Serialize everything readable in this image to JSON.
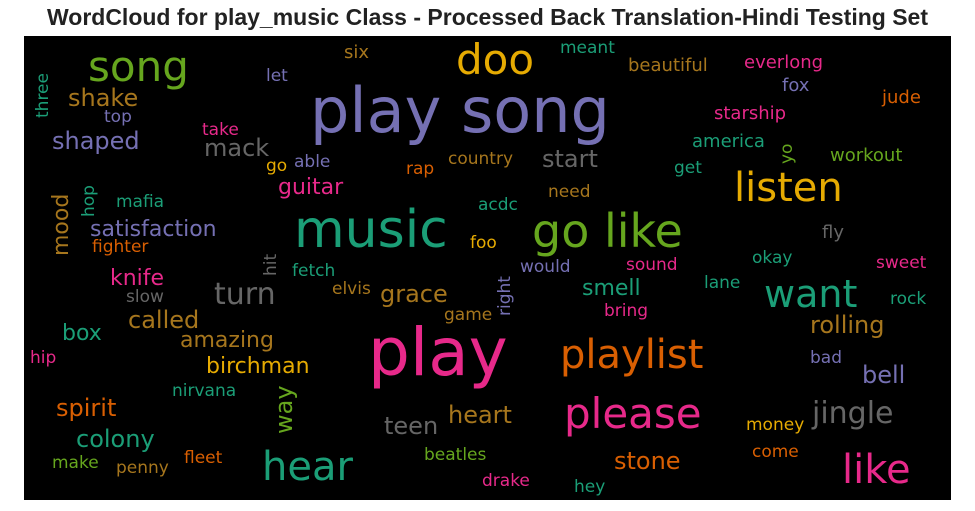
{
  "chart_data": {
    "type": "wordcloud",
    "title": "WordCloud for play_music Class - Processed Back Translation-Hindi Testing Set",
    "background": "#000000",
    "words": [
      {
        "text": "play song",
        "size": 62,
        "color": "#7570b3"
      },
      {
        "text": "play",
        "size": 66,
        "color": "#e7298a"
      },
      {
        "text": "music",
        "size": 52,
        "color": "#1b9e77"
      },
      {
        "text": "go like",
        "size": 46,
        "color": "#66a61e"
      },
      {
        "text": "song",
        "size": 42,
        "color": "#66a61e"
      },
      {
        "text": "doo",
        "size": 42,
        "color": "#e6ab02"
      },
      {
        "text": "listen",
        "size": 40,
        "color": "#e6ab02"
      },
      {
        "text": "want",
        "size": 38,
        "color": "#1b9e77"
      },
      {
        "text": "playlist",
        "size": 40,
        "color": "#d95f02"
      },
      {
        "text": "please",
        "size": 42,
        "color": "#e7298a"
      },
      {
        "text": "hear",
        "size": 40,
        "color": "#1b9e77"
      },
      {
        "text": "like",
        "size": 40,
        "color": "#e7298a"
      },
      {
        "text": "jingle",
        "size": 30,
        "color": "#666666"
      },
      {
        "text": "turn",
        "size": 30,
        "color": "#666666"
      },
      {
        "text": "grace",
        "size": 24,
        "color": "#a6761d"
      },
      {
        "text": "satisfaction",
        "size": 22,
        "color": "#7570b3"
      },
      {
        "text": "guitar",
        "size": 22,
        "color": "#e7298a"
      },
      {
        "text": "shaped",
        "size": 24,
        "color": "#7570b3"
      },
      {
        "text": "shake",
        "size": 24,
        "color": "#a6761d"
      },
      {
        "text": "mack",
        "size": 24,
        "color": "#666666"
      },
      {
        "text": "start",
        "size": 24,
        "color": "#666666"
      },
      {
        "text": "mood",
        "size": 22,
        "color": "#a6761d"
      },
      {
        "text": "knife",
        "size": 22,
        "color": "#e7298a"
      },
      {
        "text": "called",
        "size": 24,
        "color": "#a6761d"
      },
      {
        "text": "box",
        "size": 22,
        "color": "#1b9e77"
      },
      {
        "text": "amazing",
        "size": 22,
        "color": "#a6761d"
      },
      {
        "text": "birchman",
        "size": 22,
        "color": "#e6ab02"
      },
      {
        "text": "spirit",
        "size": 24,
        "color": "#d95f02"
      },
      {
        "text": "colony",
        "size": 24,
        "color": "#1b9e77"
      },
      {
        "text": "way",
        "size": 24,
        "color": "#66a61e"
      },
      {
        "text": "heart",
        "size": 24,
        "color": "#a6761d"
      },
      {
        "text": "teen",
        "size": 24,
        "color": "#666666"
      },
      {
        "text": "stone",
        "size": 24,
        "color": "#d95f02"
      },
      {
        "text": "smell",
        "size": 22,
        "color": "#1b9e77"
      },
      {
        "text": "rolling",
        "size": 24,
        "color": "#a6761d"
      },
      {
        "text": "bell",
        "size": 24,
        "color": "#7570b3"
      },
      {
        "text": "six",
        "size": 18,
        "color": "#a6761d"
      },
      {
        "text": "meant",
        "size": 17,
        "color": "#1b9e77"
      },
      {
        "text": "beautiful",
        "size": 18,
        "color": "#a6761d"
      },
      {
        "text": "everlong",
        "size": 18,
        "color": "#e7298a"
      },
      {
        "text": "fox",
        "size": 18,
        "color": "#7570b3"
      },
      {
        "text": "jude",
        "size": 18,
        "color": "#d95f02"
      },
      {
        "text": "starship",
        "size": 18,
        "color": "#e7298a"
      },
      {
        "text": "america",
        "size": 18,
        "color": "#1b9e77"
      },
      {
        "text": "yo",
        "size": 17,
        "color": "#66a61e"
      },
      {
        "text": "workout",
        "size": 18,
        "color": "#66a61e"
      },
      {
        "text": "three",
        "size": 17,
        "color": "#1b9e77"
      },
      {
        "text": "let",
        "size": 17,
        "color": "#7570b3"
      },
      {
        "text": "top",
        "size": 17,
        "color": "#7570b3"
      },
      {
        "text": "take",
        "size": 17,
        "color": "#e7298a"
      },
      {
        "text": "go",
        "size": 17,
        "color": "#e6ab02"
      },
      {
        "text": "able",
        "size": 17,
        "color": "#7570b3"
      },
      {
        "text": "rap",
        "size": 17,
        "color": "#d95f02"
      },
      {
        "text": "country",
        "size": 17,
        "color": "#a6761d"
      },
      {
        "text": "get",
        "size": 17,
        "color": "#1b9e77"
      },
      {
        "text": "need",
        "size": 17,
        "color": "#a6761d"
      },
      {
        "text": "acdc",
        "size": 17,
        "color": "#1b9e77"
      },
      {
        "text": "hop",
        "size": 17,
        "color": "#1b9e77"
      },
      {
        "text": "mafia",
        "size": 17,
        "color": "#1b9e77"
      },
      {
        "text": "fighter",
        "size": 17,
        "color": "#d95f02"
      },
      {
        "text": "foo",
        "size": 17,
        "color": "#e6ab02"
      },
      {
        "text": "fly",
        "size": 18,
        "color": "#666666"
      },
      {
        "text": "hit",
        "size": 17,
        "color": "#666666"
      },
      {
        "text": "fetch",
        "size": 17,
        "color": "#1b9e77"
      },
      {
        "text": "elvis",
        "size": 17,
        "color": "#a6761d"
      },
      {
        "text": "right",
        "size": 17,
        "color": "#7570b3"
      },
      {
        "text": "would",
        "size": 17,
        "color": "#7570b3"
      },
      {
        "text": "sound",
        "size": 17,
        "color": "#e7298a"
      },
      {
        "text": "okay",
        "size": 17,
        "color": "#1b9e77"
      },
      {
        "text": "sweet",
        "size": 17,
        "color": "#e7298a"
      },
      {
        "text": "lane",
        "size": 17,
        "color": "#1b9e77"
      },
      {
        "text": "rock",
        "size": 17,
        "color": "#1b9e77"
      },
      {
        "text": "slow",
        "size": 17,
        "color": "#666666"
      },
      {
        "text": "game",
        "size": 17,
        "color": "#a6761d"
      },
      {
        "text": "bring",
        "size": 17,
        "color": "#e7298a"
      },
      {
        "text": "hip",
        "size": 17,
        "color": "#e7298a"
      },
      {
        "text": "nirvana",
        "size": 17,
        "color": "#1b9e77"
      },
      {
        "text": "bad",
        "size": 17,
        "color": "#7570b3"
      },
      {
        "text": "money",
        "size": 17,
        "color": "#e6ab02"
      },
      {
        "text": "come",
        "size": 17,
        "color": "#d95f02"
      },
      {
        "text": "make",
        "size": 17,
        "color": "#66a61e"
      },
      {
        "text": "penny",
        "size": 17,
        "color": "#a6761d"
      },
      {
        "text": "fleet",
        "size": 17,
        "color": "#d95f02"
      },
      {
        "text": "beatles",
        "size": 17,
        "color": "#66a61e"
      },
      {
        "text": "drake",
        "size": 17,
        "color": "#e7298a"
      },
      {
        "text": "hey",
        "size": 17,
        "color": "#1b9e77"
      }
    ]
  }
}
